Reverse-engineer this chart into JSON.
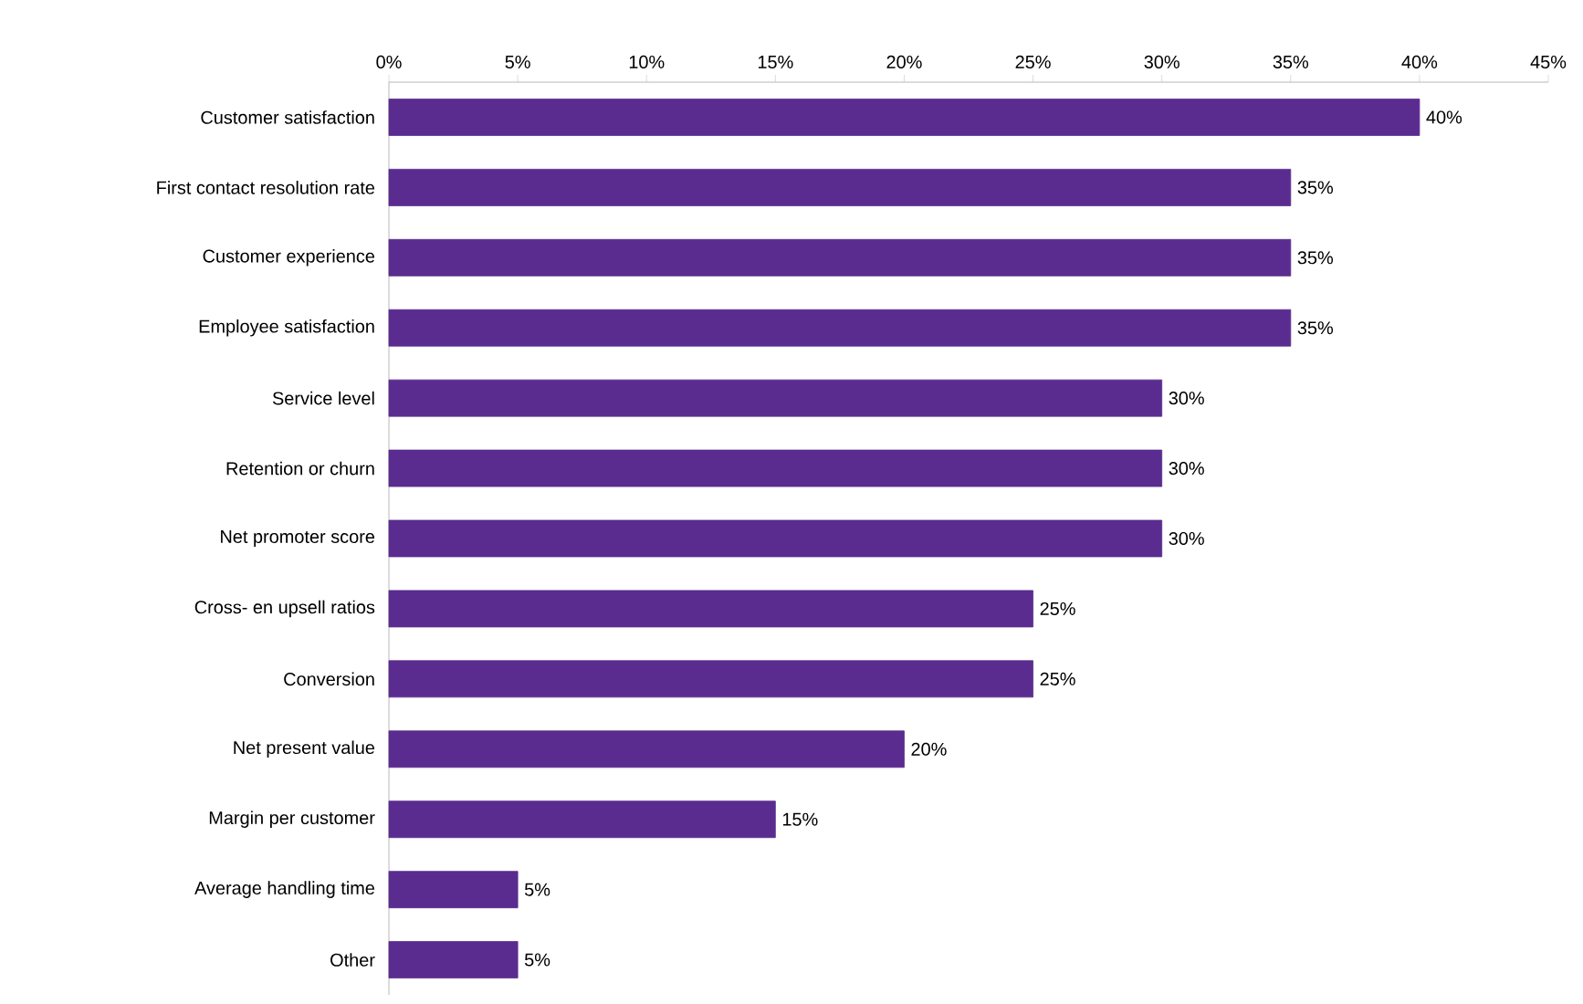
{
  "chart_data": {
    "type": "bar",
    "orientation": "horizontal",
    "categories": [
      "Customer satisfaction",
      "First contact resolution rate",
      "Customer experience",
      "Employee satisfaction",
      "Service level",
      "Retention or churn",
      "Net promoter score",
      "Cross- en upsell ratios",
      "Conversion",
      "Net present value",
      "Margin per customer",
      "Average handling time",
      "Other"
    ],
    "values": [
      40,
      35,
      35,
      35,
      30,
      30,
      30,
      25,
      25,
      20,
      15,
      5,
      5
    ],
    "value_labels": [
      "40%",
      "35%",
      "35%",
      "35%",
      "30%",
      "30%",
      "30%",
      "25%",
      "25%",
      "20%",
      "15%",
      "5%",
      "5%"
    ],
    "color": "#5b2c8f",
    "xlim": [
      0,
      45
    ],
    "xticks": [
      {
        "value": 0,
        "label": "0%"
      },
      {
        "value": 5,
        "label": "5%"
      },
      {
        "value": 10,
        "label": "10%"
      },
      {
        "value": 15,
        "label": "15%"
      },
      {
        "value": 20,
        "label": "20%"
      },
      {
        "value": 25,
        "label": "25%"
      },
      {
        "value": 30,
        "label": "30%"
      },
      {
        "value": 35,
        "label": "35%"
      },
      {
        "value": 40,
        "label": "40%"
      },
      {
        "value": 45,
        "label": "45%"
      }
    ]
  }
}
